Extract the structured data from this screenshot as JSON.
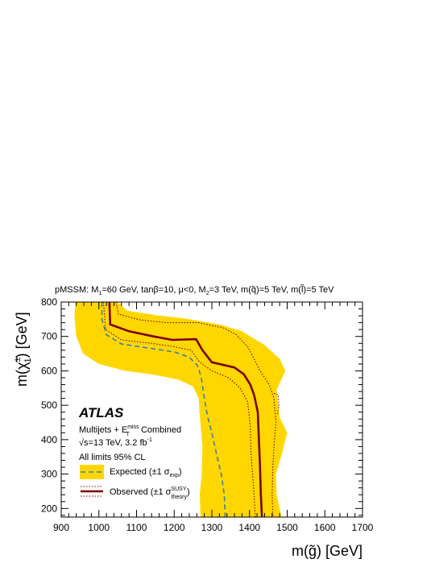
{
  "chart_data": {
    "type": "line",
    "header": {
      "text": "pMSSM: M1=60 GeV, tanβ=10, μ<0, M2=3 TeV, m(q̃)=5 TeV, m(l̃)=5 TeV",
      "parts": [
        "pMSSM: M",
        "1",
        "=60 GeV, tanβ=10, μ<0, M",
        "2",
        "=3 TeV, m(",
        "q̃",
        ")=5 TeV, m(",
        "l̃",
        ")=5 TeV"
      ]
    },
    "xlabel": "m(g̃) [GeV]",
    "xlabel_parts": [
      "m(",
      "g̃",
      ") [GeV]"
    ],
    "ylabel": "m(χ̃±1) [GeV]",
    "ylabel_parts": [
      "m(",
      "χ̃",
      "±",
      "1",
      ") [GeV]"
    ],
    "xlim": [
      900,
      1700
    ],
    "ylim": [
      175,
      800
    ],
    "x_ticks": [
      "900",
      "1000",
      "1100",
      "1200",
      "1300",
      "1400",
      "1500",
      "1600",
      "1700"
    ],
    "y_ticks": [
      "200",
      "300",
      "400",
      "500",
      "600",
      "700",
      "800"
    ],
    "colors": {
      "band": "#ffd700",
      "expected": "#3d7ea6",
      "observed": "#7a0000"
    },
    "atlas_label": "ATLAS",
    "info_lines": {
      "line1_parts": [
        "Multijets + E",
        "miss",
        "T",
        " Combined"
      ],
      "line2_parts": [
        "√s=13 TeV, 3.2 fb",
        "-1"
      ],
      "line3": "All limits 95% CL"
    },
    "legend": {
      "expected_parts": [
        "Expected (±1 σ",
        "exp",
        ")"
      ],
      "observed_parts": [
        "Observed (±1 σ",
        "SUSY",
        "theory",
        ")"
      ]
    },
    "series": [
      {
        "key": "band_lower",
        "points": [
          [
            938,
            800
          ],
          [
            935,
            760
          ],
          [
            940,
            700
          ],
          [
            958,
            650
          ],
          [
            1000,
            620
          ],
          [
            1070,
            600
          ],
          [
            1150,
            588
          ],
          [
            1210,
            575
          ],
          [
            1250,
            555
          ],
          [
            1265,
            520
          ],
          [
            1268,
            470
          ],
          [
            1272,
            420
          ],
          [
            1275,
            380
          ],
          [
            1273,
            300
          ],
          [
            1268,
            240
          ],
          [
            1270,
            175
          ]
        ]
      },
      {
        "key": "band_upper",
        "points": [
          [
            1050,
            800
          ],
          [
            1075,
            775
          ],
          [
            1150,
            762
          ],
          [
            1230,
            752
          ],
          [
            1320,
            735
          ],
          [
            1380,
            715
          ],
          [
            1440,
            675
          ],
          [
            1480,
            635
          ],
          [
            1495,
            600
          ],
          [
            1472,
            545
          ],
          [
            1480,
            465
          ],
          [
            1500,
            420
          ],
          [
            1486,
            360
          ],
          [
            1470,
            300
          ],
          [
            1472,
            240
          ],
          [
            1485,
            175
          ]
        ]
      },
      {
        "key": "expected",
        "points": [
          [
            1008,
            800
          ],
          [
            1008,
            750
          ],
          [
            1020,
            705
          ],
          [
            1060,
            678
          ],
          [
            1140,
            665
          ],
          [
            1200,
            655
          ],
          [
            1240,
            640
          ],
          [
            1262,
            615
          ],
          [
            1272,
            580
          ],
          [
            1280,
            520
          ],
          [
            1288,
            470
          ],
          [
            1300,
            420
          ],
          [
            1312,
            360
          ],
          [
            1325,
            300
          ],
          [
            1333,
            240
          ],
          [
            1335,
            175
          ]
        ]
      },
      {
        "key": "observed",
        "points": [
          [
            1028,
            800
          ],
          [
            1030,
            735
          ],
          [
            1080,
            715
          ],
          [
            1145,
            700
          ],
          [
            1195,
            690
          ],
          [
            1258,
            692
          ],
          [
            1275,
            660
          ],
          [
            1300,
            625
          ],
          [
            1360,
            610
          ],
          [
            1385,
            590
          ],
          [
            1402,
            560
          ],
          [
            1412,
            530
          ],
          [
            1422,
            480
          ],
          [
            1425,
            400
          ],
          [
            1428,
            320
          ],
          [
            1430,
            240
          ],
          [
            1433,
            175
          ]
        ]
      },
      {
        "key": "observed_low",
        "points": [
          [
            1012,
            800
          ],
          [
            1018,
            720
          ],
          [
            1060,
            690
          ],
          [
            1140,
            680
          ],
          [
            1200,
            670
          ],
          [
            1245,
            660
          ],
          [
            1268,
            625
          ],
          [
            1300,
            600
          ],
          [
            1345,
            580
          ],
          [
            1375,
            550
          ],
          [
            1395,
            510
          ],
          [
            1402,
            440
          ],
          [
            1404,
            360
          ],
          [
            1408,
            300
          ],
          [
            1412,
            240
          ],
          [
            1415,
            175
          ]
        ]
      },
      {
        "key": "observed_high",
        "points": [
          [
            1045,
            800
          ],
          [
            1052,
            765
          ],
          [
            1110,
            748
          ],
          [
            1180,
            740
          ],
          [
            1265,
            740
          ],
          [
            1330,
            725
          ],
          [
            1365,
            705
          ],
          [
            1395,
            670
          ],
          [
            1410,
            640
          ],
          [
            1428,
            600
          ],
          [
            1452,
            560
          ],
          [
            1465,
            520
          ],
          [
            1470,
            450
          ],
          [
            1465,
            380
          ],
          [
            1462,
            320
          ],
          [
            1460,
            240
          ],
          [
            1462,
            175
          ]
        ]
      },
      {
        "key": "observed_high_tail",
        "points": [
          [
            1465,
            535
          ],
          [
            1476,
            530
          ],
          [
            1478,
            500
          ],
          [
            1474,
            470
          ]
        ]
      }
    ]
  }
}
